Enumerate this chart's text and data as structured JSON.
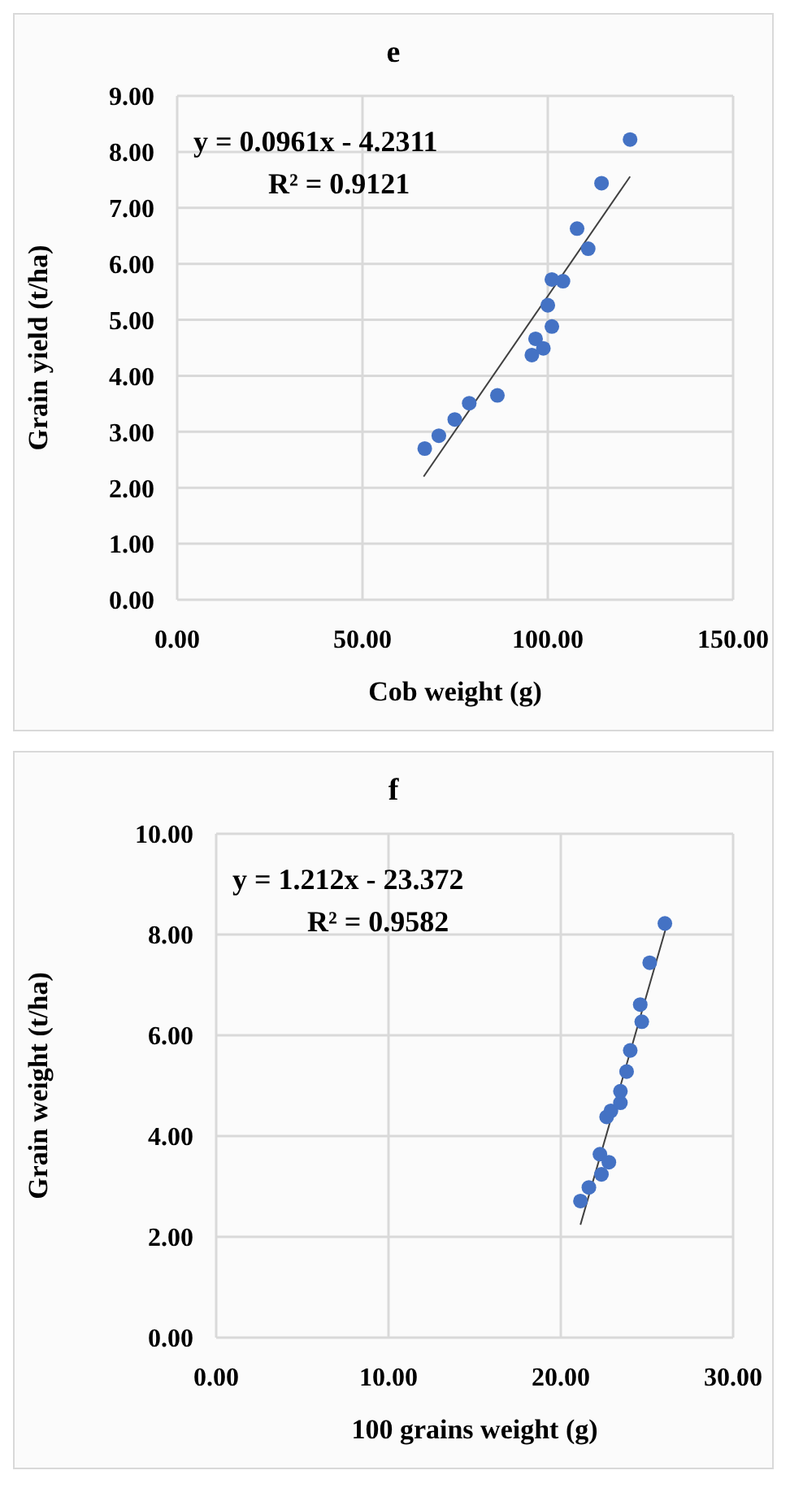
{
  "chart_data": [
    {
      "type": "scatter",
      "title": "e",
      "xlabel": "Cob weight (g)",
      "ylabel": "Grain yield  (t/ha)",
      "xlim": [
        0,
        150
      ],
      "ylim": [
        0,
        9
      ],
      "xticks": [
        {
          "value": 0,
          "label": "0.00"
        },
        {
          "value": 50,
          "label": "50.00"
        },
        {
          "value": 100,
          "label": "100.00"
        },
        {
          "value": 150,
          "label": "150.00"
        }
      ],
      "yticks": [
        {
          "value": 0,
          "label": "0.00"
        },
        {
          "value": 1,
          "label": "1.00"
        },
        {
          "value": 2,
          "label": "2.00"
        },
        {
          "value": 3,
          "label": "3.00"
        },
        {
          "value": 4,
          "label": "4.00"
        },
        {
          "value": 5,
          "label": "5.00"
        },
        {
          "value": 6,
          "label": "6.00"
        },
        {
          "value": 7,
          "label": "7.00"
        },
        {
          "value": 8,
          "label": "8.00"
        },
        {
          "value": 9,
          "label": "9.00"
        }
      ],
      "grid": true,
      "annotations": [
        "y = 0.0961x - 4.2311",
        "R² = 0.9121"
      ],
      "series": [
        {
          "marker": "circle",
          "color": "#4472c4",
          "x": [
            66.8,
            70.6,
            74.9,
            78.8,
            86.4,
            95.7,
            96.7,
            98.8,
            100.0,
            101.1,
            101.1,
            104.1,
            110.9,
            107.9,
            114.5,
            122.2
          ],
          "values": [
            2.7,
            2.93,
            3.22,
            3.51,
            3.65,
            4.37,
            4.66,
            4.49,
            5.26,
            4.88,
            5.72,
            5.69,
            6.27,
            6.63,
            7.44,
            8.22
          ]
        },
        {
          "type": "line",
          "marker": "none",
          "color": "#404040",
          "x": [
            66.5,
            122.2
          ],
          "values": [
            2.2,
            7.56
          ]
        }
      ]
    },
    {
      "type": "scatter",
      "title": "f",
      "xlabel": "100 grains weight (g)",
      "ylabel": "Grain weight (t/ha)",
      "xlim": [
        0,
        30
      ],
      "ylim": [
        0,
        10
      ],
      "xticks": [
        {
          "value": 0,
          "label": "0.00"
        },
        {
          "value": 10,
          "label": "10.00"
        },
        {
          "value": 20,
          "label": "20.00"
        },
        {
          "value": 30,
          "label": "30.00"
        }
      ],
      "yticks": [
        {
          "value": 0,
          "label": "0.00"
        },
        {
          "value": 2,
          "label": "2.00"
        },
        {
          "value": 4,
          "label": "4.00"
        },
        {
          "value": 6,
          "label": "6.00"
        },
        {
          "value": 8,
          "label": "8.00"
        },
        {
          "value": 10,
          "label": "10.00"
        }
      ],
      "grid": true,
      "annotations": [
        "y = 1.212x - 23.372",
        "R² = 0.9582"
      ],
      "series": [
        {
          "marker": "circle",
          "color": "#4472c4",
          "x": [
            21.14,
            21.63,
            22.36,
            22.27,
            22.79,
            22.66,
            22.91,
            23.46,
            23.46,
            23.82,
            24.03,
            24.7,
            24.61,
            25.16,
            26.04
          ],
          "values": [
            2.71,
            2.98,
            3.24,
            3.64,
            3.48,
            4.38,
            4.5,
            4.66,
            4.89,
            5.28,
            5.7,
            6.27,
            6.61,
            7.44,
            8.22
          ]
        },
        {
          "type": "line",
          "marker": "none",
          "color": "#404040",
          "x": [
            21.14,
            26.1
          ],
          "values": [
            2.24,
            8.13
          ]
        }
      ]
    }
  ]
}
